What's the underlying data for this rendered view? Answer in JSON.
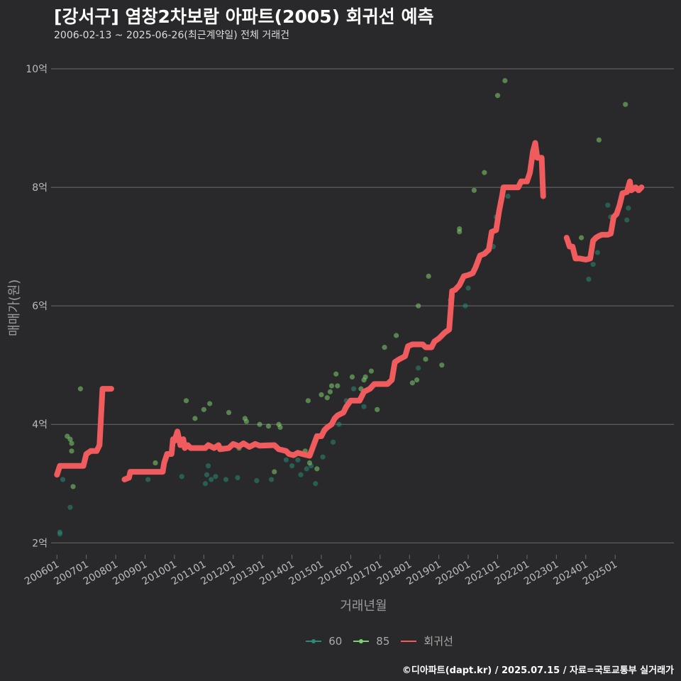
{
  "title": "[강서구] 염창2차보람 아파트(2005) 회귀선 예측",
  "subtitle": "2006-02-13 ~ 2025-06-26(최근계약일) 전체 거래건",
  "caption": "©디아파트(dapt.kr) / 2025.07.15 / 자료=국토교통부 실거래가",
  "colors": {
    "background": "#29292b",
    "grid": "#6b6b6b",
    "s60": "#2a8a78",
    "s85": "#7ed06e",
    "reg": "#f05b5e"
  },
  "chart_data": {
    "type": "scatter",
    "title": "[강서구] 염창2차보람 아파트(2005) 회귀선 예측",
    "xlabel": "거래년월",
    "ylabel": "매매가(원)",
    "xlim": [
      2005.8,
      2027.0
    ],
    "ylim": [
      1.8,
      10.3
    ],
    "yticks": [
      2,
      4,
      6,
      8,
      10
    ],
    "ytick_labels": [
      "2억",
      "4억",
      "6억",
      "8억",
      "10억"
    ],
    "xticks": [
      2006,
      2007,
      2008,
      2009,
      2010,
      2011,
      2012,
      2013,
      2014,
      2015,
      2016,
      2017,
      2018,
      2019,
      2020,
      2021,
      2022,
      2023,
      2024,
      2025
    ],
    "xtick_labels": [
      "200601",
      "200701",
      "200801",
      "200901",
      "201001",
      "201101",
      "201201",
      "201301",
      "201401",
      "201501",
      "201601",
      "201701",
      "201801",
      "201901",
      "202001",
      "202101",
      "202201",
      "202301",
      "202401",
      "202501"
    ],
    "legend": [
      "60",
      "85",
      "회귀선"
    ],
    "series": [
      {
        "name": "60",
        "points": [
          [
            2006.1,
            2.15
          ],
          [
            2006.1,
            2.18
          ],
          [
            2006.2,
            3.07
          ],
          [
            2006.45,
            2.6
          ],
          [
            2009.1,
            3.07
          ],
          [
            2010.25,
            3.12
          ],
          [
            2011.05,
            3.0
          ],
          [
            2011.1,
            3.15
          ],
          [
            2011.15,
            3.3
          ],
          [
            2011.25,
            3.07
          ],
          [
            2011.4,
            3.12
          ],
          [
            2011.75,
            3.07
          ],
          [
            2012.15,
            3.1
          ],
          [
            2012.8,
            3.05
          ],
          [
            2013.3,
            3.07
          ],
          [
            2013.5,
            3.6
          ],
          [
            2013.8,
            3.4
          ],
          [
            2014.0,
            3.3
          ],
          [
            2014.2,
            3.4
          ],
          [
            2014.3,
            3.15
          ],
          [
            2014.5,
            3.25
          ],
          [
            2014.65,
            3.3
          ],
          [
            2014.8,
            3.0
          ],
          [
            2015.05,
            3.45
          ],
          [
            2015.4,
            3.7
          ],
          [
            2015.6,
            4.0
          ],
          [
            2015.85,
            4.4
          ],
          [
            2016.1,
            4.6
          ],
          [
            2016.45,
            4.3
          ],
          [
            2017.3,
            4.7
          ],
          [
            2018.3,
            4.95
          ],
          [
            2019.9,
            6.0
          ],
          [
            2020.0,
            6.3
          ],
          [
            2020.6,
            6.9
          ],
          [
            2020.85,
            7.0
          ],
          [
            2020.95,
            7.5
          ],
          [
            2021.35,
            7.85
          ],
          [
            2024.1,
            6.45
          ],
          [
            2024.25,
            6.7
          ],
          [
            2024.4,
            6.9
          ],
          [
            2024.75,
            7.7
          ],
          [
            2024.85,
            7.5
          ],
          [
            2025.4,
            7.45
          ],
          [
            2025.45,
            7.65
          ]
        ]
      },
      {
        "name": "85",
        "points": [
          [
            2006.35,
            3.8
          ],
          [
            2006.45,
            3.75
          ],
          [
            2006.5,
            3.55
          ],
          [
            2006.5,
            3.68
          ],
          [
            2006.55,
            2.95
          ],
          [
            2006.8,
            4.6
          ],
          [
            2009.35,
            3.35
          ],
          [
            2010.4,
            4.4
          ],
          [
            2010.7,
            4.1
          ],
          [
            2011.0,
            4.25
          ],
          [
            2011.2,
            4.35
          ],
          [
            2011.6,
            3.6
          ],
          [
            2011.85,
            4.2
          ],
          [
            2012.2,
            3.6
          ],
          [
            2012.4,
            4.1
          ],
          [
            2012.45,
            4.05
          ],
          [
            2012.9,
            4.0
          ],
          [
            2013.2,
            3.97
          ],
          [
            2013.55,
            4.0
          ],
          [
            2013.6,
            3.95
          ],
          [
            2013.4,
            3.2
          ],
          [
            2014.6,
            3.35
          ],
          [
            2014.85,
            3.25
          ],
          [
            2014.45,
            3.55
          ],
          [
            2014.55,
            4.4
          ],
          [
            2015.0,
            4.5
          ],
          [
            2015.2,
            4.45
          ],
          [
            2015.3,
            4.55
          ],
          [
            2015.35,
            4.65
          ],
          [
            2015.5,
            4.85
          ],
          [
            2015.55,
            4.65
          ],
          [
            2016.05,
            4.8
          ],
          [
            2016.35,
            4.6
          ],
          [
            2016.45,
            4.75
          ],
          [
            2016.5,
            4.8
          ],
          [
            2016.7,
            4.9
          ],
          [
            2016.9,
            4.25
          ],
          [
            2017.15,
            5.3
          ],
          [
            2017.55,
            5.5
          ],
          [
            2018.1,
            4.7
          ],
          [
            2018.25,
            4.75
          ],
          [
            2018.3,
            6.0
          ],
          [
            2018.55,
            5.1
          ],
          [
            2018.65,
            6.5
          ],
          [
            2019.1,
            5.0
          ],
          [
            2019.4,
            6.1
          ],
          [
            2019.7,
            7.3
          ],
          [
            2019.7,
            7.25
          ],
          [
            2020.2,
            7.95
          ],
          [
            2020.55,
            8.25
          ],
          [
            2021.0,
            9.55
          ],
          [
            2021.25,
            9.8
          ],
          [
            2023.85,
            7.15
          ],
          [
            2024.45,
            8.8
          ],
          [
            2025.35,
            9.4
          ]
        ]
      }
    ],
    "regression": [
      [
        [
          2006.0,
          3.15
        ],
        [
          2006.1,
          3.3
        ],
        [
          2006.9,
          3.3
        ],
        [
          2007.0,
          3.5
        ],
        [
          2007.15,
          3.55
        ],
        [
          2007.35,
          3.55
        ],
        [
          2007.45,
          3.65
        ],
        [
          2007.55,
          4.6
        ],
        [
          2007.85,
          4.6
        ]
      ],
      [
        [
          2008.3,
          3.07
        ],
        [
          2008.45,
          3.1
        ],
        [
          2008.5,
          3.2
        ],
        [
          2009.6,
          3.2
        ],
        [
          2009.65,
          3.35
        ],
        [
          2009.75,
          3.5
        ],
        [
          2009.9,
          3.5
        ],
        [
          2009.95,
          3.75
        ],
        [
          2010.0,
          3.72
        ],
        [
          2010.1,
          3.88
        ],
        [
          2010.2,
          3.65
        ],
        [
          2010.3,
          3.75
        ],
        [
          2010.35,
          3.6
        ],
        [
          2010.45,
          3.65
        ],
        [
          2010.55,
          3.6
        ],
        [
          2011.05,
          3.6
        ],
        [
          2011.15,
          3.65
        ],
        [
          2011.35,
          3.6
        ],
        [
          2011.5,
          3.65
        ],
        [
          2011.55,
          3.58
        ],
        [
          2011.85,
          3.6
        ],
        [
          2012.0,
          3.67
        ],
        [
          2012.2,
          3.63
        ],
        [
          2012.35,
          3.68
        ],
        [
          2012.55,
          3.62
        ],
        [
          2012.75,
          3.67
        ],
        [
          2012.9,
          3.64
        ],
        [
          2013.4,
          3.65
        ],
        [
          2013.55,
          3.58
        ],
        [
          2013.8,
          3.55
        ],
        [
          2013.9,
          3.5
        ],
        [
          2014.05,
          3.48
        ],
        [
          2014.2,
          3.52
        ],
        [
          2014.35,
          3.5
        ],
        [
          2014.6,
          3.47
        ],
        [
          2014.7,
          3.6
        ],
        [
          2014.85,
          3.8
        ],
        [
          2015.0,
          3.8
        ],
        [
          2015.1,
          3.9
        ],
        [
          2015.2,
          3.95
        ],
        [
          2015.35,
          4.0
        ],
        [
          2015.45,
          4.1
        ],
        [
          2015.55,
          4.15
        ],
        [
          2015.75,
          4.2
        ],
        [
          2015.85,
          4.3
        ],
        [
          2016.0,
          4.4
        ],
        [
          2016.3,
          4.4
        ],
        [
          2016.45,
          4.55
        ],
        [
          2016.65,
          4.6
        ],
        [
          2016.8,
          4.68
        ],
        [
          2017.25,
          4.68
        ],
        [
          2017.4,
          4.75
        ],
        [
          2017.5,
          5.05
        ],
        [
          2017.65,
          5.1
        ],
        [
          2017.85,
          5.15
        ],
        [
          2017.95,
          5.32
        ],
        [
          2018.1,
          5.35
        ],
        [
          2018.45,
          5.35
        ],
        [
          2018.55,
          5.3
        ],
        [
          2018.75,
          5.3
        ],
        [
          2018.85,
          5.4
        ],
        [
          2019.0,
          5.45
        ],
        [
          2019.2,
          5.55
        ],
        [
          2019.35,
          5.6
        ],
        [
          2019.45,
          6.25
        ],
        [
          2019.55,
          6.27
        ],
        [
          2019.7,
          6.35
        ],
        [
          2019.85,
          6.5
        ],
        [
          2020.0,
          6.52
        ],
        [
          2020.15,
          6.55
        ],
        [
          2020.25,
          6.65
        ],
        [
          2020.4,
          6.85
        ],
        [
          2020.55,
          6.88
        ],
        [
          2020.7,
          6.95
        ],
        [
          2020.8,
          7.25
        ],
        [
          2020.95,
          7.28
        ],
        [
          2021.05,
          7.6
        ],
        [
          2021.15,
          7.85
        ],
        [
          2021.2,
          8.0
        ],
        [
          2021.7,
          8.0
        ],
        [
          2021.8,
          8.1
        ],
        [
          2022.0,
          8.1
        ],
        [
          2022.1,
          8.25
        ],
        [
          2022.2,
          8.6
        ],
        [
          2022.28,
          8.75
        ],
        [
          2022.35,
          8.5
        ],
        [
          2022.5,
          8.5
        ],
        [
          2022.55,
          7.85
        ]
      ],
      [
        [
          2023.35,
          7.15
        ],
        [
          2023.45,
          7.0
        ],
        [
          2023.55,
          7.0
        ],
        [
          2023.65,
          6.8
        ],
        [
          2023.8,
          6.8
        ],
        [
          2024.0,
          6.78
        ],
        [
          2024.15,
          6.8
        ],
        [
          2024.25,
          7.1
        ],
        [
          2024.35,
          7.15
        ],
        [
          2024.45,
          7.18
        ],
        [
          2024.55,
          7.2
        ],
        [
          2024.75,
          7.2
        ],
        [
          2024.85,
          7.22
        ],
        [
          2024.95,
          7.5
        ],
        [
          2025.05,
          7.55
        ],
        [
          2025.15,
          7.7
        ],
        [
          2025.25,
          7.9
        ],
        [
          2025.4,
          7.92
        ],
        [
          2025.5,
          8.1
        ],
        [
          2025.55,
          7.95
        ],
        [
          2025.7,
          8.0
        ],
        [
          2025.8,
          7.95
        ],
        [
          2025.9,
          8.0
        ]
      ]
    ]
  }
}
